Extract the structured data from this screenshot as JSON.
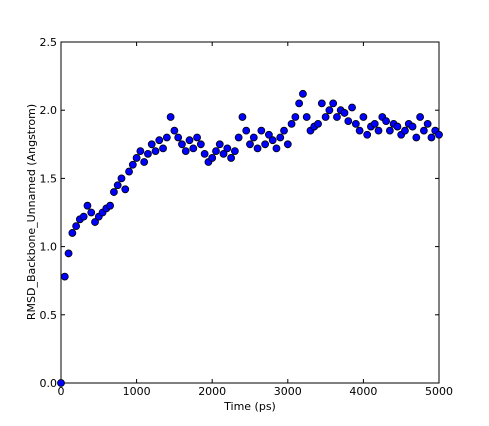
{
  "chart_data": {
    "type": "scatter",
    "xlabel": "Time (ps)",
    "ylabel": "RMSD_Backbone_Unnamed (Angstrom)",
    "color": "#0000ff",
    "xlim": [
      0,
      5000
    ],
    "ylim": [
      0,
      2.5
    ],
    "xticks": [
      0,
      1000,
      2000,
      3000,
      4000,
      5000
    ],
    "yticks": [
      {
        "value": 0,
        "label": "0.0"
      },
      {
        "value": 0.5,
        "label": "0.5"
      },
      {
        "value": 1,
        "label": "1.0"
      },
      {
        "value": 1.5,
        "label": "1.5"
      },
      {
        "value": 2,
        "label": "2.0"
      },
      {
        "value": 2.5,
        "label": "2.5"
      }
    ],
    "x": [
      0,
      50,
      100,
      150,
      200,
      250,
      300,
      350,
      400,
      450,
      500,
      550,
      600,
      650,
      700,
      750,
      800,
      850,
      900,
      950,
      1000,
      1050,
      1100,
      1150,
      1200,
      1250,
      1300,
      1350,
      1400,
      1450,
      1500,
      1550,
      1600,
      1650,
      1700,
      1750,
      1800,
      1850,
      1900,
      1950,
      2000,
      2050,
      2100,
      2150,
      2200,
      2250,
      2300,
      2350,
      2400,
      2450,
      2500,
      2550,
      2600,
      2650,
      2700,
      2750,
      2800,
      2850,
      2900,
      2950,
      3000,
      3050,
      3100,
      3150,
      3200,
      3250,
      3300,
      3350,
      3400,
      3450,
      3500,
      3550,
      3600,
      3650,
      3700,
      3750,
      3800,
      3850,
      3900,
      3950,
      4000,
      4050,
      4100,
      4150,
      4200,
      4250,
      4300,
      4350,
      4400,
      4450,
      4500,
      4550,
      4600,
      4650,
      4700,
      4750,
      4800,
      4850,
      4900,
      4950,
      5000
    ],
    "values": [
      0.0,
      0.78,
      0.95,
      1.1,
      1.15,
      1.2,
      1.22,
      1.3,
      1.25,
      1.18,
      1.22,
      1.25,
      1.28,
      1.3,
      1.4,
      1.45,
      1.5,
      1.42,
      1.55,
      1.6,
      1.65,
      1.7,
      1.62,
      1.68,
      1.75,
      1.7,
      1.78,
      1.72,
      1.8,
      1.95,
      1.85,
      1.8,
      1.75,
      1.7,
      1.78,
      1.72,
      1.8,
      1.75,
      1.68,
      1.62,
      1.65,
      1.7,
      1.75,
      1.68,
      1.72,
      1.65,
      1.7,
      1.8,
      1.95,
      1.85,
      1.75,
      1.8,
      1.72,
      1.85,
      1.75,
      1.82,
      1.78,
      1.72,
      1.8,
      1.85,
      1.75,
      1.9,
      1.95,
      2.05,
      2.12,
      1.95,
      1.85,
      1.88,
      1.9,
      2.05,
      1.95,
      2.0,
      2.05,
      1.95,
      2.0,
      1.98,
      1.92,
      2.02,
      1.9,
      1.85,
      1.95,
      1.82,
      1.88,
      1.9,
      1.85,
      1.95,
      1.92,
      1.85,
      1.9,
      1.88,
      1.82,
      1.85,
      1.9,
      1.88,
      1.8,
      1.95,
      1.85,
      1.9,
      1.8,
      1.85,
      1.82
    ]
  }
}
